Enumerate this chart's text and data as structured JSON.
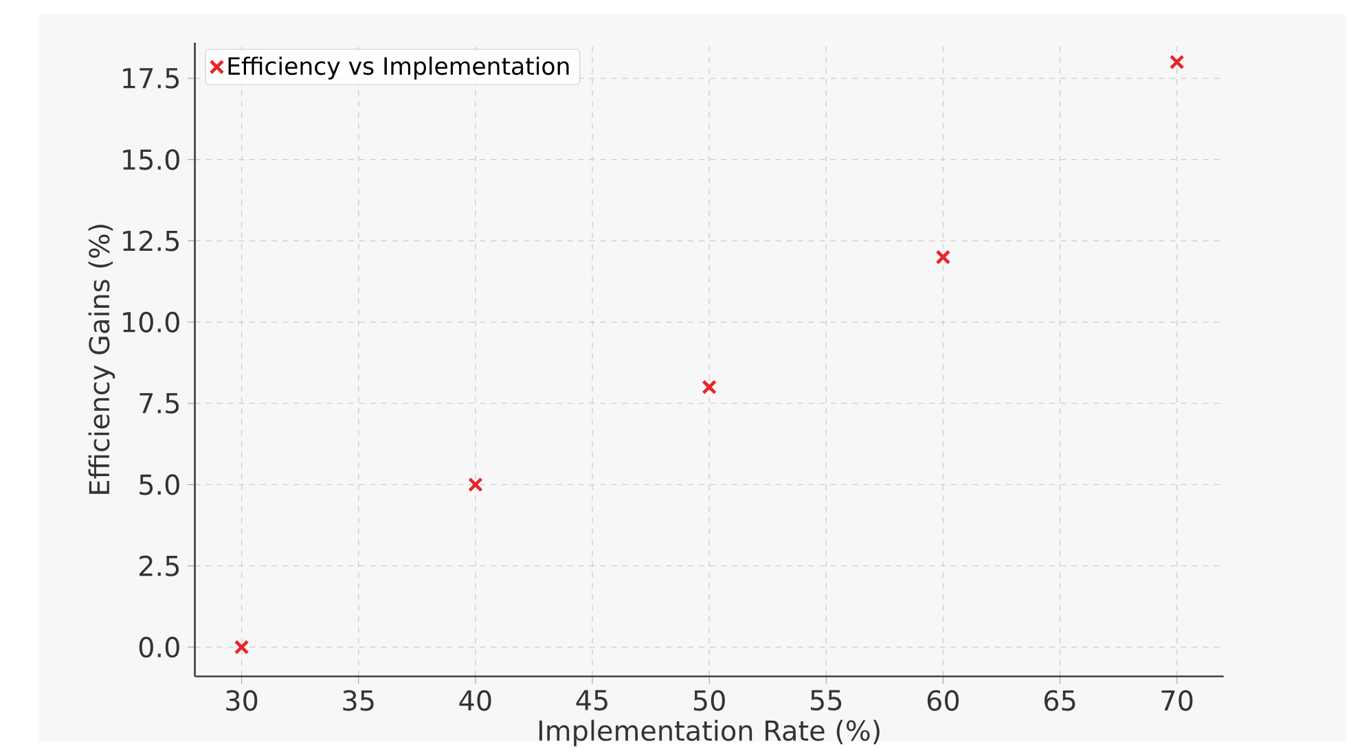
{
  "chart_data": {
    "type": "scatter",
    "xlabel": "Implementation Rate (%)",
    "ylabel": "Efficiency Gains (%)",
    "x": [
      30,
      40,
      50,
      60,
      70
    ],
    "series": [
      {
        "name": "Efficiency vs Implementation",
        "color": "#e8262a",
        "values": [
          0,
          5,
          8,
          12,
          18
        ]
      }
    ],
    "xlim": [
      28,
      72
    ],
    "ylim": [
      -0.9,
      18.6
    ],
    "xticks": [
      30,
      35,
      40,
      45,
      50,
      55,
      60,
      65,
      70
    ],
    "yticks": [
      {
        "value": 0,
        "label": "0.0"
      },
      {
        "value": 2.5,
        "label": "2.5"
      },
      {
        "value": 5,
        "label": "5.0"
      },
      {
        "value": 7.5,
        "label": "7.5"
      },
      {
        "value": 10,
        "label": "10.0"
      },
      {
        "value": 12.5,
        "label": "12.5"
      },
      {
        "value": 15,
        "label": "15.0"
      },
      {
        "value": 17.5,
        "label": "17.5"
      }
    ],
    "grid": true,
    "legend": "top left",
    "marker": "cross"
  }
}
